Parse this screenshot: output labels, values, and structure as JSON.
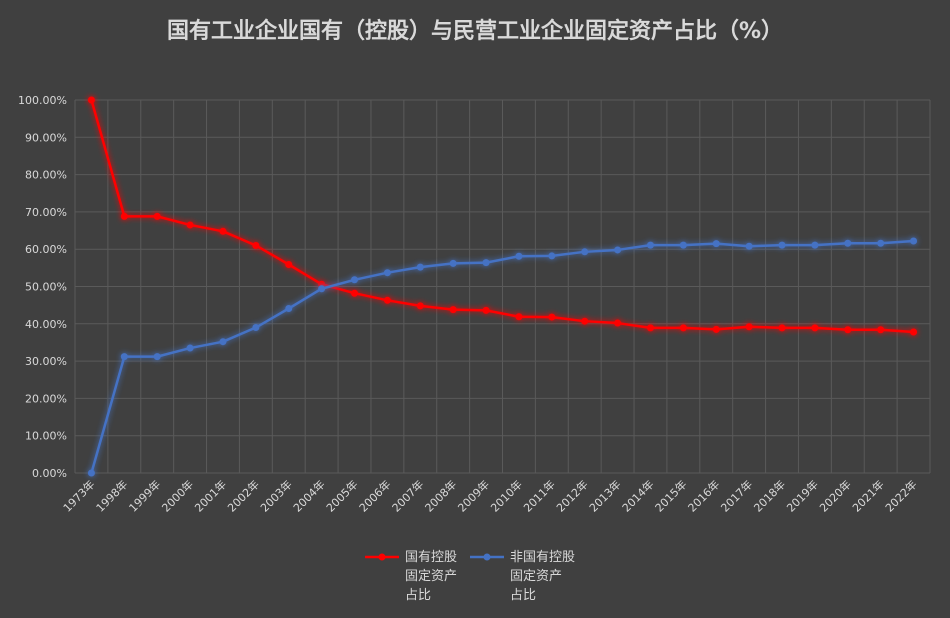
{
  "chart_data": {
    "type": "line",
    "title": "国有工业企业国有（控股）与民营工业企业固定资产占比（%）",
    "categories": [
      "1973年",
      "1998年",
      "1999年",
      "2000年",
      "2001年",
      "2002年",
      "2003年",
      "2004年",
      "2005年",
      "2006年",
      "2007年",
      "2008年",
      "2009年",
      "2010年",
      "2011年",
      "2012年",
      "2013年",
      "2014年",
      "2015年",
      "2016年",
      "2017年",
      "2018年",
      "2019年",
      "2020年",
      "2021年",
      "2022年"
    ],
    "y_ticks": [
      "0.00%",
      "10.00%",
      "20.00%",
      "30.00%",
      "40.00%",
      "50.00%",
      "60.00%",
      "70.00%",
      "80.00%",
      "90.00%",
      "100.00%"
    ],
    "ylim": [
      0,
      100
    ],
    "grid": true,
    "legend_position": "bottom",
    "series": [
      {
        "name": "国有控股固定资产占比",
        "legend_lines": [
          "国有控股",
          "固定资产",
          "占比"
        ],
        "color": "#ff0000",
        "values": [
          100,
          68.8,
          68.8,
          66.5,
          64.8,
          61.0,
          55.9,
          50.6,
          48.2,
          46.3,
          44.8,
          43.8,
          43.6,
          41.9,
          41.8,
          40.7,
          40.2,
          38.9,
          38.9,
          38.5,
          39.2,
          38.9,
          38.9,
          38.4,
          38.4,
          37.8
        ]
      },
      {
        "name": "非国有控股固定资产占比",
        "legend_lines": [
          "非国有控股",
          "固定资产",
          "占比"
        ],
        "color": "#4472c4",
        "values": [
          0,
          31.2,
          31.2,
          33.5,
          35.2,
          39.0,
          44.1,
          49.4,
          51.8,
          53.7,
          55.2,
          56.2,
          56.4,
          58.1,
          58.2,
          59.3,
          59.8,
          61.1,
          61.1,
          61.5,
          60.8,
          61.1,
          61.1,
          61.6,
          61.6,
          62.2
        ]
      }
    ]
  }
}
